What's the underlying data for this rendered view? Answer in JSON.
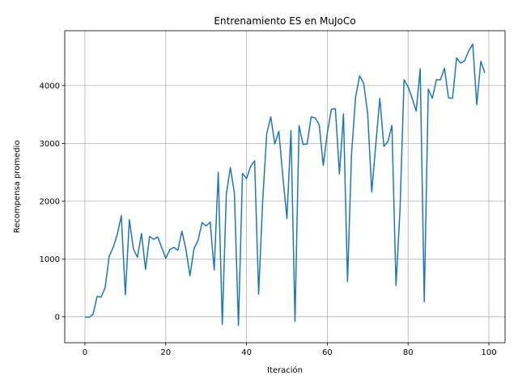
{
  "chart_data": {
    "type": "line",
    "title": "Entrenamiento ES en MuJoCo",
    "xlabel": "Iteración",
    "ylabel": "Recompensa promedio",
    "xlim": [
      -5,
      104
    ],
    "ylim": [
      -450,
      4950
    ],
    "xticks": [
      0,
      20,
      40,
      60,
      80,
      100
    ],
    "yticks": [
      0,
      1000,
      2000,
      3000,
      4000
    ],
    "grid": true,
    "line_color": "#1f77b4",
    "series": [
      {
        "x": [
          0,
          1,
          2,
          3,
          4,
          5,
          6,
          7,
          8,
          9,
          10,
          11,
          12,
          13,
          14,
          15,
          16,
          17,
          18,
          19,
          20,
          21,
          22,
          23,
          24,
          25,
          26,
          27,
          28,
          29,
          30,
          31,
          32,
          33,
          34,
          35,
          36,
          37,
          38,
          39,
          40,
          41,
          42,
          43,
          44,
          45,
          46,
          47,
          48,
          49,
          50,
          51,
          52,
          53,
          54,
          55,
          56,
          57,
          58,
          59,
          60,
          61,
          62,
          63,
          64,
          65,
          66,
          67,
          68,
          69,
          70,
          71,
          72,
          73,
          74,
          75,
          76,
          77,
          78,
          79,
          80,
          81,
          82,
          83,
          84,
          85,
          86,
          87,
          88,
          89,
          90,
          91,
          92,
          93,
          94,
          95,
          96,
          97,
          98,
          99
        ],
        "values": [
          -5,
          -10,
          40,
          350,
          340,
          500,
          1050,
          1200,
          1420,
          1750,
          380,
          1680,
          1170,
          1030,
          1440,
          820,
          1390,
          1340,
          1380,
          1200,
          1010,
          1160,
          1200,
          1150,
          1480,
          1170,
          710,
          1180,
          1320,
          1630,
          1570,
          1640,
          810,
          2500,
          -130,
          2120,
          2580,
          2140,
          -150,
          2480,
          2390,
          2600,
          2700,
          390,
          2010,
          3170,
          3460,
          2990,
          3210,
          2420,
          1700,
          3220,
          -80,
          3310,
          2980,
          2990,
          3460,
          3440,
          3320,
          2620,
          3180,
          3590,
          3600,
          2470,
          3510,
          610,
          2820,
          3800,
          4170,
          4040,
          3510,
          2160,
          2980,
          3780,
          2950,
          3030,
          3310,
          540,
          1850,
          4100,
          3980,
          3780,
          3560,
          4290,
          260,
          3940,
          3780,
          4100,
          4100,
          4300,
          3790,
          3780,
          4480,
          4390,
          4430,
          4600,
          4720,
          3670,
          4420,
          4220
        ]
      }
    ]
  }
}
